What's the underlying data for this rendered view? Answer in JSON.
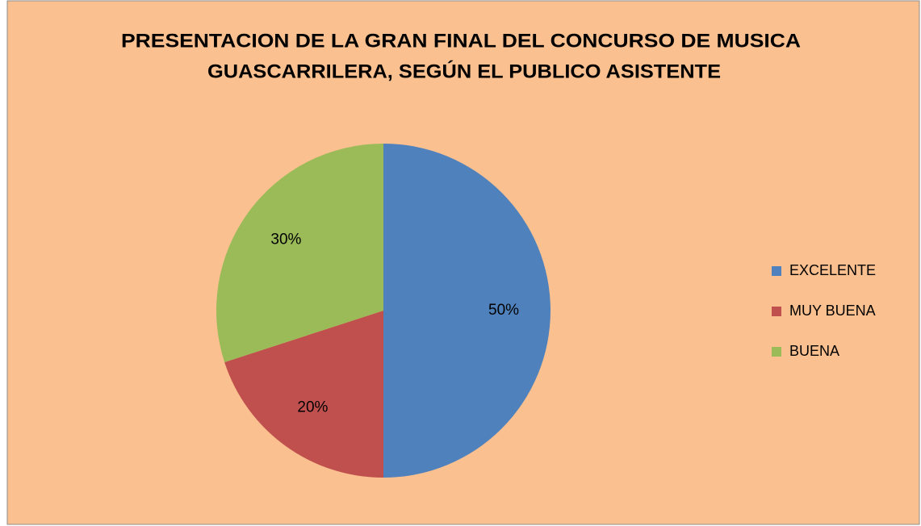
{
  "chart_data": {
    "type": "pie",
    "title": [
      "PRESENTACION DE LA GRAN FINAL DEL CONCURSO DE MUSICA",
      "GUASCARRILERA, SEGÚN EL PUBLICO ASISTENTE"
    ],
    "categories": [
      "EXCELENTE",
      "MUY BUENA",
      "BUENA"
    ],
    "values": [
      50,
      20,
      30
    ],
    "value_labels": [
      "50%",
      "20%",
      "30%"
    ],
    "colors": [
      "#4f81bd",
      "#c0504d",
      "#9bbb59"
    ],
    "legend": "right"
  }
}
